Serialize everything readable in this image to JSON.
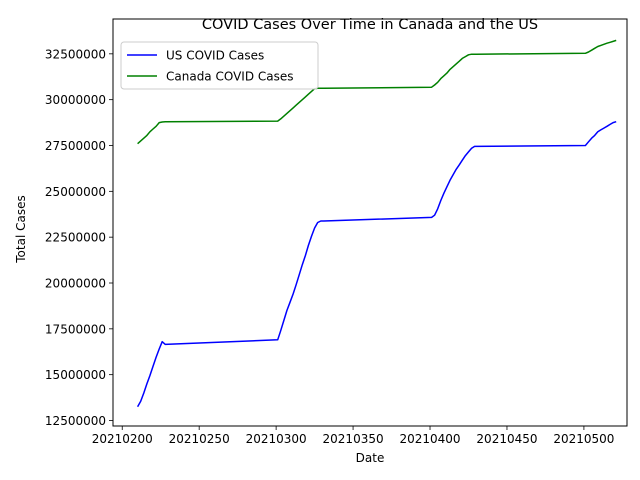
{
  "chart_data": {
    "type": "line",
    "title": "COVID Cases Over Time in Canada and the US",
    "xlabel": "Date",
    "ylabel": "Total Cases",
    "xlim": [
      20210194,
      20210528
    ],
    "ylim": [
      12200000,
      34400000
    ],
    "x_ticks": [
      20210200,
      20210250,
      20210300,
      20210350,
      20210400,
      20210450,
      20210500
    ],
    "y_ticks": [
      12500000,
      15000000,
      17500000,
      20000000,
      22500000,
      25000000,
      27500000,
      30000000,
      32500000
    ],
    "grid": false,
    "legend_position": "upper-left",
    "series": [
      {
        "name": "US COVID Cases",
        "color": "#0000ff",
        "x": [
          20210210,
          20210212,
          20210214,
          20210216,
          20210218,
          20210220,
          20210222,
          20210224,
          20210226,
          20210228,
          20210301,
          20210303,
          20210305,
          20210307,
          20210309,
          20210311,
          20210313,
          20210315,
          20210317,
          20210319,
          20210321,
          20210323,
          20210325,
          20210327,
          20210329,
          20210331,
          20210401,
          20210403,
          20210405,
          20210407,
          20210409,
          20210411,
          20210413,
          20210415,
          20210417,
          20210419,
          20210421,
          20210423,
          20210425,
          20210427,
          20210429,
          20210430,
          20210501,
          20210503,
          20210505,
          20210507,
          20210509,
          20210511,
          20210513,
          20210515,
          20210517,
          20210519,
          20210521
        ],
        "y": [
          13250000,
          13550000,
          14000000,
          14500000,
          14950000,
          15450000,
          15950000,
          16400000,
          16800000,
          16650000,
          16900000,
          17400000,
          17950000,
          18500000,
          18950000,
          19400000,
          19900000,
          20450000,
          21000000,
          21500000,
          22050000,
          22550000,
          23000000,
          23300000,
          23380000,
          23380000,
          23580000,
          23700000,
          24050000,
          24500000,
          24900000,
          25250000,
          25600000,
          25900000,
          26200000,
          26450000,
          26700000,
          26950000,
          27150000,
          27350000,
          27450000,
          27450000,
          27500000,
          27700000,
          27900000,
          28050000,
          28250000,
          28350000,
          28450000,
          28550000,
          28650000,
          28750000,
          28800000
        ]
      },
      {
        "name": "Canada COVID Cases",
        "color": "#008000",
        "x": [
          20210210,
          20210212,
          20210214,
          20210216,
          20210218,
          20210220,
          20210222,
          20210224,
          20210226,
          20210228,
          20210301,
          20210303,
          20210305,
          20210307,
          20210309,
          20210311,
          20210313,
          20210315,
          20210317,
          20210319,
          20210321,
          20210323,
          20210325,
          20210327,
          20210329,
          20210331,
          20210401,
          20210403,
          20210405,
          20210407,
          20210409,
          20210411,
          20210413,
          20210415,
          20210417,
          20210419,
          20210421,
          20210423,
          20210425,
          20210427,
          20210429,
          20210430,
          20210501,
          20210503,
          20210505,
          20210507,
          20210509,
          20210511,
          20210513,
          20210515,
          20210517,
          20210519,
          20210521
        ],
        "y": [
          27600000,
          27750000,
          27900000,
          28050000,
          28250000,
          28400000,
          28550000,
          28750000,
          28780000,
          28790000,
          28830000,
          28950000,
          29100000,
          29250000,
          29400000,
          29550000,
          29700000,
          29850000,
          30000000,
          30150000,
          30300000,
          30450000,
          30600000,
          30620000,
          30620000,
          30620000,
          30680000,
          30800000,
          30950000,
          31150000,
          31300000,
          31450000,
          31650000,
          31800000,
          31950000,
          32100000,
          32250000,
          32350000,
          32450000,
          32480000,
          32480000,
          32480000,
          32530000,
          32600000,
          32700000,
          32800000,
          32900000,
          32960000,
          33020000,
          33080000,
          33130000,
          33180000,
          33230000
        ]
      }
    ]
  }
}
